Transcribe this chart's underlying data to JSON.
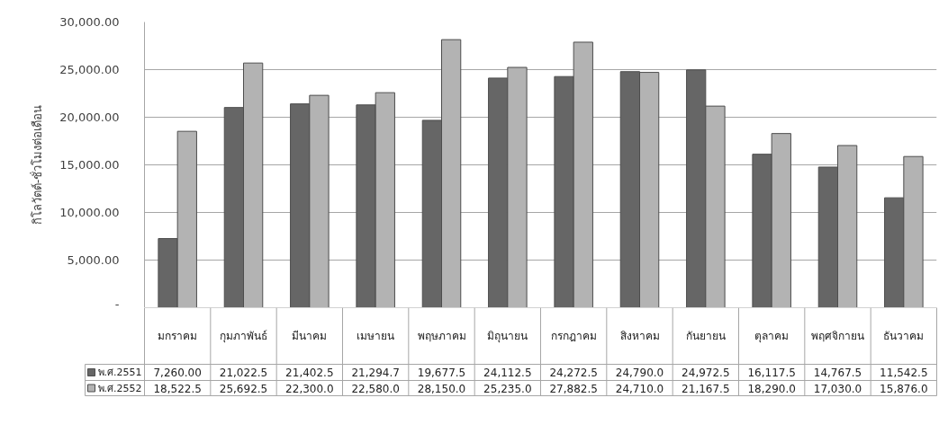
{
  "chart_data": {
    "type": "bar",
    "ylabel": "กิโลวัตต์-ชั่วโมงต่อเดือน",
    "categories": [
      "มกราคม",
      "กุมภาพันธ์",
      "มีนาคม",
      "เมษายน",
      "พฤษภาคม",
      "มิถุนายน",
      "กรกฎาคม",
      "สิงหาคม",
      "กันยายน",
      "ตุลาคม",
      "พฤศจิกายน",
      "ธันวาคม"
    ],
    "series": [
      {
        "name": "พ.ศ.2551",
        "color": "#666666",
        "values": [
          7260,
          21022.5,
          21402.5,
          21294.7,
          19677.5,
          24112.5,
          24272.5,
          24790,
          24972.5,
          16117.5,
          14767.5,
          11542.5
        ],
        "value_labels": [
          "7,260.00",
          "21,022.5",
          "21,402.5",
          "21,294.7",
          "19,677.5",
          "24,112.5",
          "24,272.5",
          "24,790.0",
          "24,972.5",
          "16,117.5",
          "14,767.5",
          "11,542.5"
        ]
      },
      {
        "name": "พ.ศ.2552",
        "color": "#b3b3b3",
        "values": [
          18522.5,
          25692.5,
          22300,
          22580,
          28150,
          25235,
          27882.5,
          24710,
          21167.5,
          18290,
          17030,
          15876
        ],
        "value_labels": [
          "18,522.5",
          "25,692.5",
          "22,300.0",
          "22,580.0",
          "28,150.0",
          "25,235.0",
          "27,882.5",
          "24,710.0",
          "21,167.5",
          "18,290.0",
          "17,030.0",
          "15,876.0"
        ]
      }
    ],
    "ylim": [
      0,
      30000
    ],
    "yticks": [
      {
        "value": 0,
        "label": "-"
      },
      {
        "value": 5000,
        "label": "5,000.00"
      },
      {
        "value": 10000,
        "label": "10,000.00"
      },
      {
        "value": 15000,
        "label": "15,000.00"
      },
      {
        "value": 20000,
        "label": "20,000.00"
      },
      {
        "value": 25000,
        "label": "25,000.00"
      },
      {
        "value": 30000,
        "label": "30,000.00"
      }
    ],
    "grid": "y",
    "legend": "bottom left"
  }
}
